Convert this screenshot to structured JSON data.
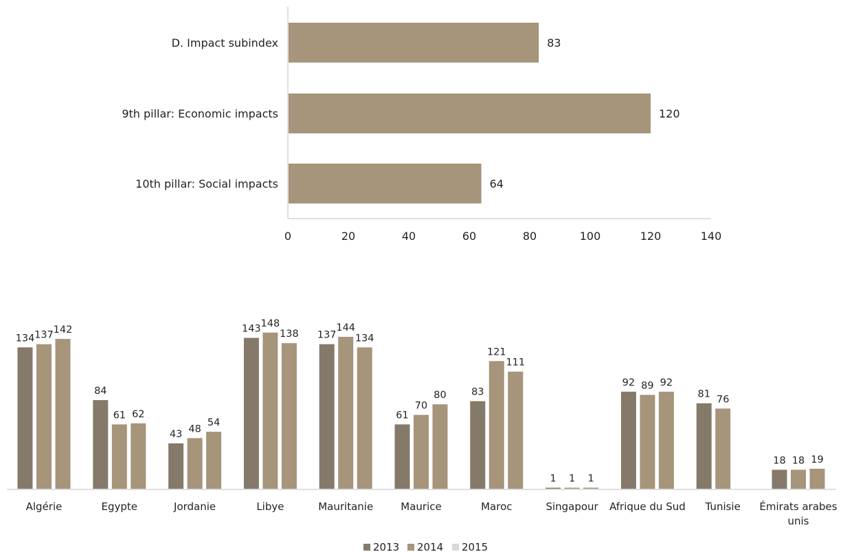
{
  "chart_data": [
    {
      "type": "bar",
      "orientation": "horizontal",
      "categories": [
        "D. Impact subindex",
        "9th pillar: Economic impacts",
        "10th pillar: Social impacts"
      ],
      "values": [
        83,
        120,
        64
      ],
      "xlim": [
        0,
        140
      ],
      "xticks": [
        "0",
        "20",
        "40",
        "60",
        "80",
        "100",
        "120",
        "140"
      ],
      "bar_color": "#a6947b",
      "grid": false
    },
    {
      "type": "bar",
      "categories": [
        "Algérie",
        "Egypte",
        "Jordanie",
        "Libye",
        "Mauritanie",
        "Maurice",
        "Maroc",
        "Singapour",
        "Afrique du Sud",
        "Tunisie",
        "Émirats arabes unis"
      ],
      "series": [
        {
          "name": "2013",
          "color": "#85796a",
          "values": [
            134,
            84,
            43,
            143,
            137,
            61,
            83,
            1,
            92,
            81,
            18
          ]
        },
        {
          "name": "2014",
          "color": "#a6947b",
          "values": [
            137,
            61,
            48,
            148,
            144,
            70,
            121,
            1,
            89,
            76,
            18
          ]
        },
        {
          "name": "2015",
          "color": "#a6947b",
          "values": [
            142,
            62,
            54,
            138,
            134,
            80,
            111,
            1,
            92,
            null,
            19
          ]
        }
      ],
      "legend_colors": [
        "#85796a",
        "#a6947b",
        "#d9d9d9"
      ],
      "legend": "bottom",
      "grid": false
    }
  ]
}
